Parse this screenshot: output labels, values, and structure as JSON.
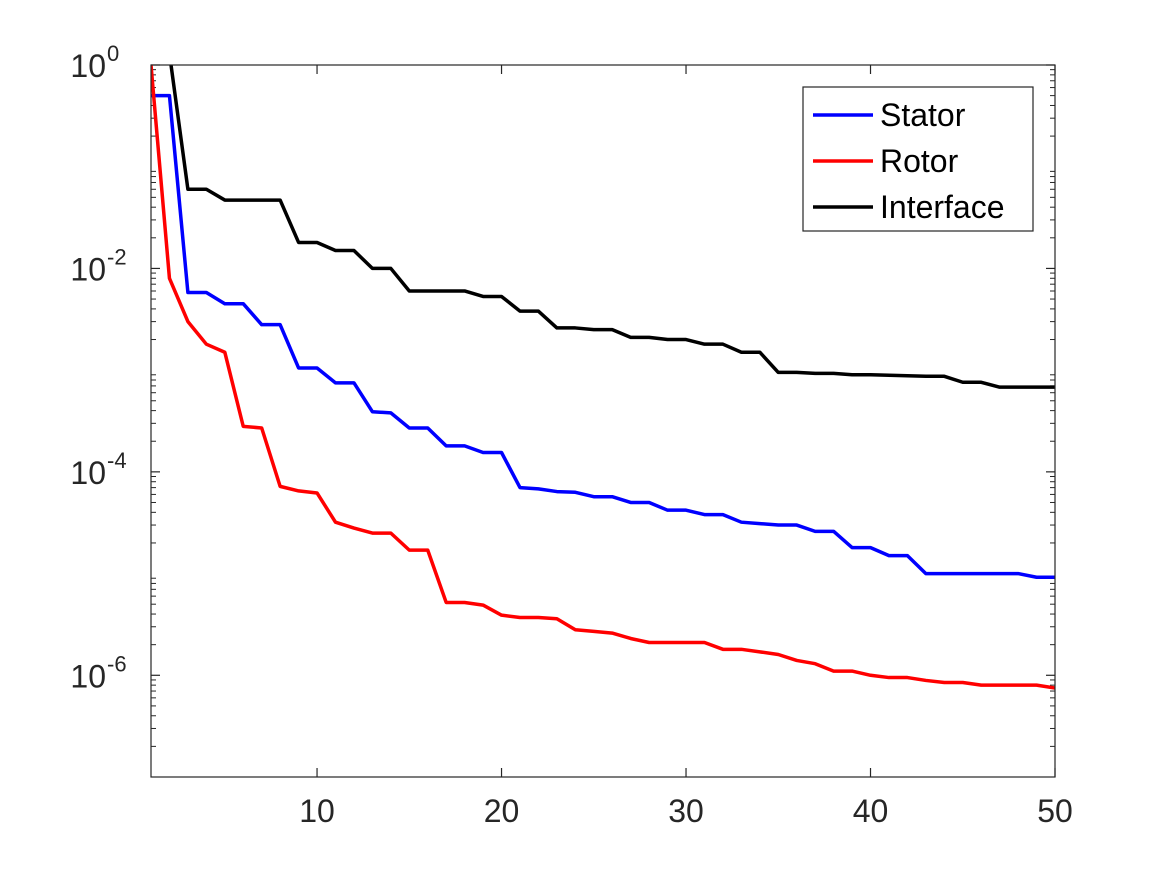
{
  "chart_data": {
    "type": "line",
    "title": "",
    "xlabel": "",
    "ylabel": "",
    "xscale": "linear",
    "yscale": "log",
    "xlim": [
      1,
      50
    ],
    "ylim": [
      1e-07,
      1
    ],
    "xticks": [
      10,
      20,
      30,
      40,
      50
    ],
    "xtick_labels": [
      "10",
      "20",
      "30",
      "40",
      "50"
    ],
    "yticks": [
      1e-06,
      0.0001,
      0.01,
      1
    ],
    "ytick_labels": [
      {
        "base": "10",
        "exp": "-6"
      },
      {
        "base": "10",
        "exp": "-4"
      },
      {
        "base": "10",
        "exp": "-2"
      },
      {
        "base": "10",
        "exp": "0"
      }
    ],
    "grid": false,
    "box": true,
    "legend_position": "top-right",
    "x": [
      1,
      2,
      3,
      4,
      5,
      6,
      7,
      8,
      9,
      10,
      11,
      12,
      13,
      14,
      15,
      16,
      17,
      18,
      19,
      20,
      21,
      22,
      23,
      24,
      25,
      26,
      27,
      28,
      29,
      30,
      31,
      32,
      33,
      34,
      35,
      36,
      37,
      38,
      39,
      40,
      41,
      42,
      43,
      44,
      45,
      46,
      47,
      48,
      49,
      50
    ],
    "series": [
      {
        "name": "Stator",
        "color": "#0000ff",
        "values": [
          0.5,
          0.5,
          0.0058,
          0.0058,
          0.0045,
          0.0045,
          0.0028,
          0.0028,
          0.00105,
          0.00105,
          0.00075,
          0.00075,
          0.00039,
          0.00038,
          0.00027,
          0.00027,
          0.00018,
          0.00018,
          0.000155,
          0.000155,
          7e-05,
          6.8e-05,
          6.4e-05,
          6.3e-05,
          5.7e-05,
          5.7e-05,
          5e-05,
          5e-05,
          4.2e-05,
          4.2e-05,
          3.8e-05,
          3.8e-05,
          3.2e-05,
          3.1e-05,
          3e-05,
          3e-05,
          2.6e-05,
          2.6e-05,
          1.8e-05,
          1.8e-05,
          1.5e-05,
          1.5e-05,
          1e-05,
          1e-05,
          1e-05,
          1e-05,
          1e-05,
          1e-05,
          9.2e-06,
          9.2e-06
        ]
      },
      {
        "name": "Rotor",
        "color": "#ff0000",
        "values": [
          1.0,
          0.008,
          0.003,
          0.0018,
          0.0015,
          0.00028,
          0.00027,
          7.2e-05,
          6.5e-05,
          6.2e-05,
          3.2e-05,
          2.8e-05,
          2.5e-05,
          2.5e-05,
          1.7e-05,
          1.7e-05,
          5.2e-06,
          5.2e-06,
          4.9e-06,
          3.9e-06,
          3.7e-06,
          3.7e-06,
          3.6e-06,
          2.8e-06,
          2.7e-06,
          2.6e-06,
          2.3e-06,
          2.1e-06,
          2.1e-06,
          2.1e-06,
          2.1e-06,
          1.8e-06,
          1.8e-06,
          1.7e-06,
          1.6e-06,
          1.4e-06,
          1.3e-06,
          1.1e-06,
          1.1e-06,
          1e-06,
          9.5e-07,
          9.5e-07,
          8.9e-07,
          8.5e-07,
          8.5e-07,
          8e-07,
          8e-07,
          8e-07,
          8e-07,
          7.5e-07
        ]
      },
      {
        "name": "Interface",
        "color": "#000000",
        "values": [
          3.0,
          1.3,
          0.06,
          0.06,
          0.047,
          0.047,
          0.047,
          0.047,
          0.018,
          0.018,
          0.015,
          0.015,
          0.01,
          0.01,
          0.006,
          0.006,
          0.006,
          0.006,
          0.0053,
          0.0053,
          0.0038,
          0.0038,
          0.0026,
          0.0026,
          0.0025,
          0.0025,
          0.0021,
          0.0021,
          0.002,
          0.002,
          0.0018,
          0.0018,
          0.0015,
          0.0015,
          0.00095,
          0.00095,
          0.00093,
          0.00093,
          0.0009,
          0.0009,
          0.00089,
          0.00088,
          0.00087,
          0.00087,
          0.00076,
          0.00076,
          0.00068,
          0.00068,
          0.00068,
          0.00068
        ]
      }
    ]
  }
}
